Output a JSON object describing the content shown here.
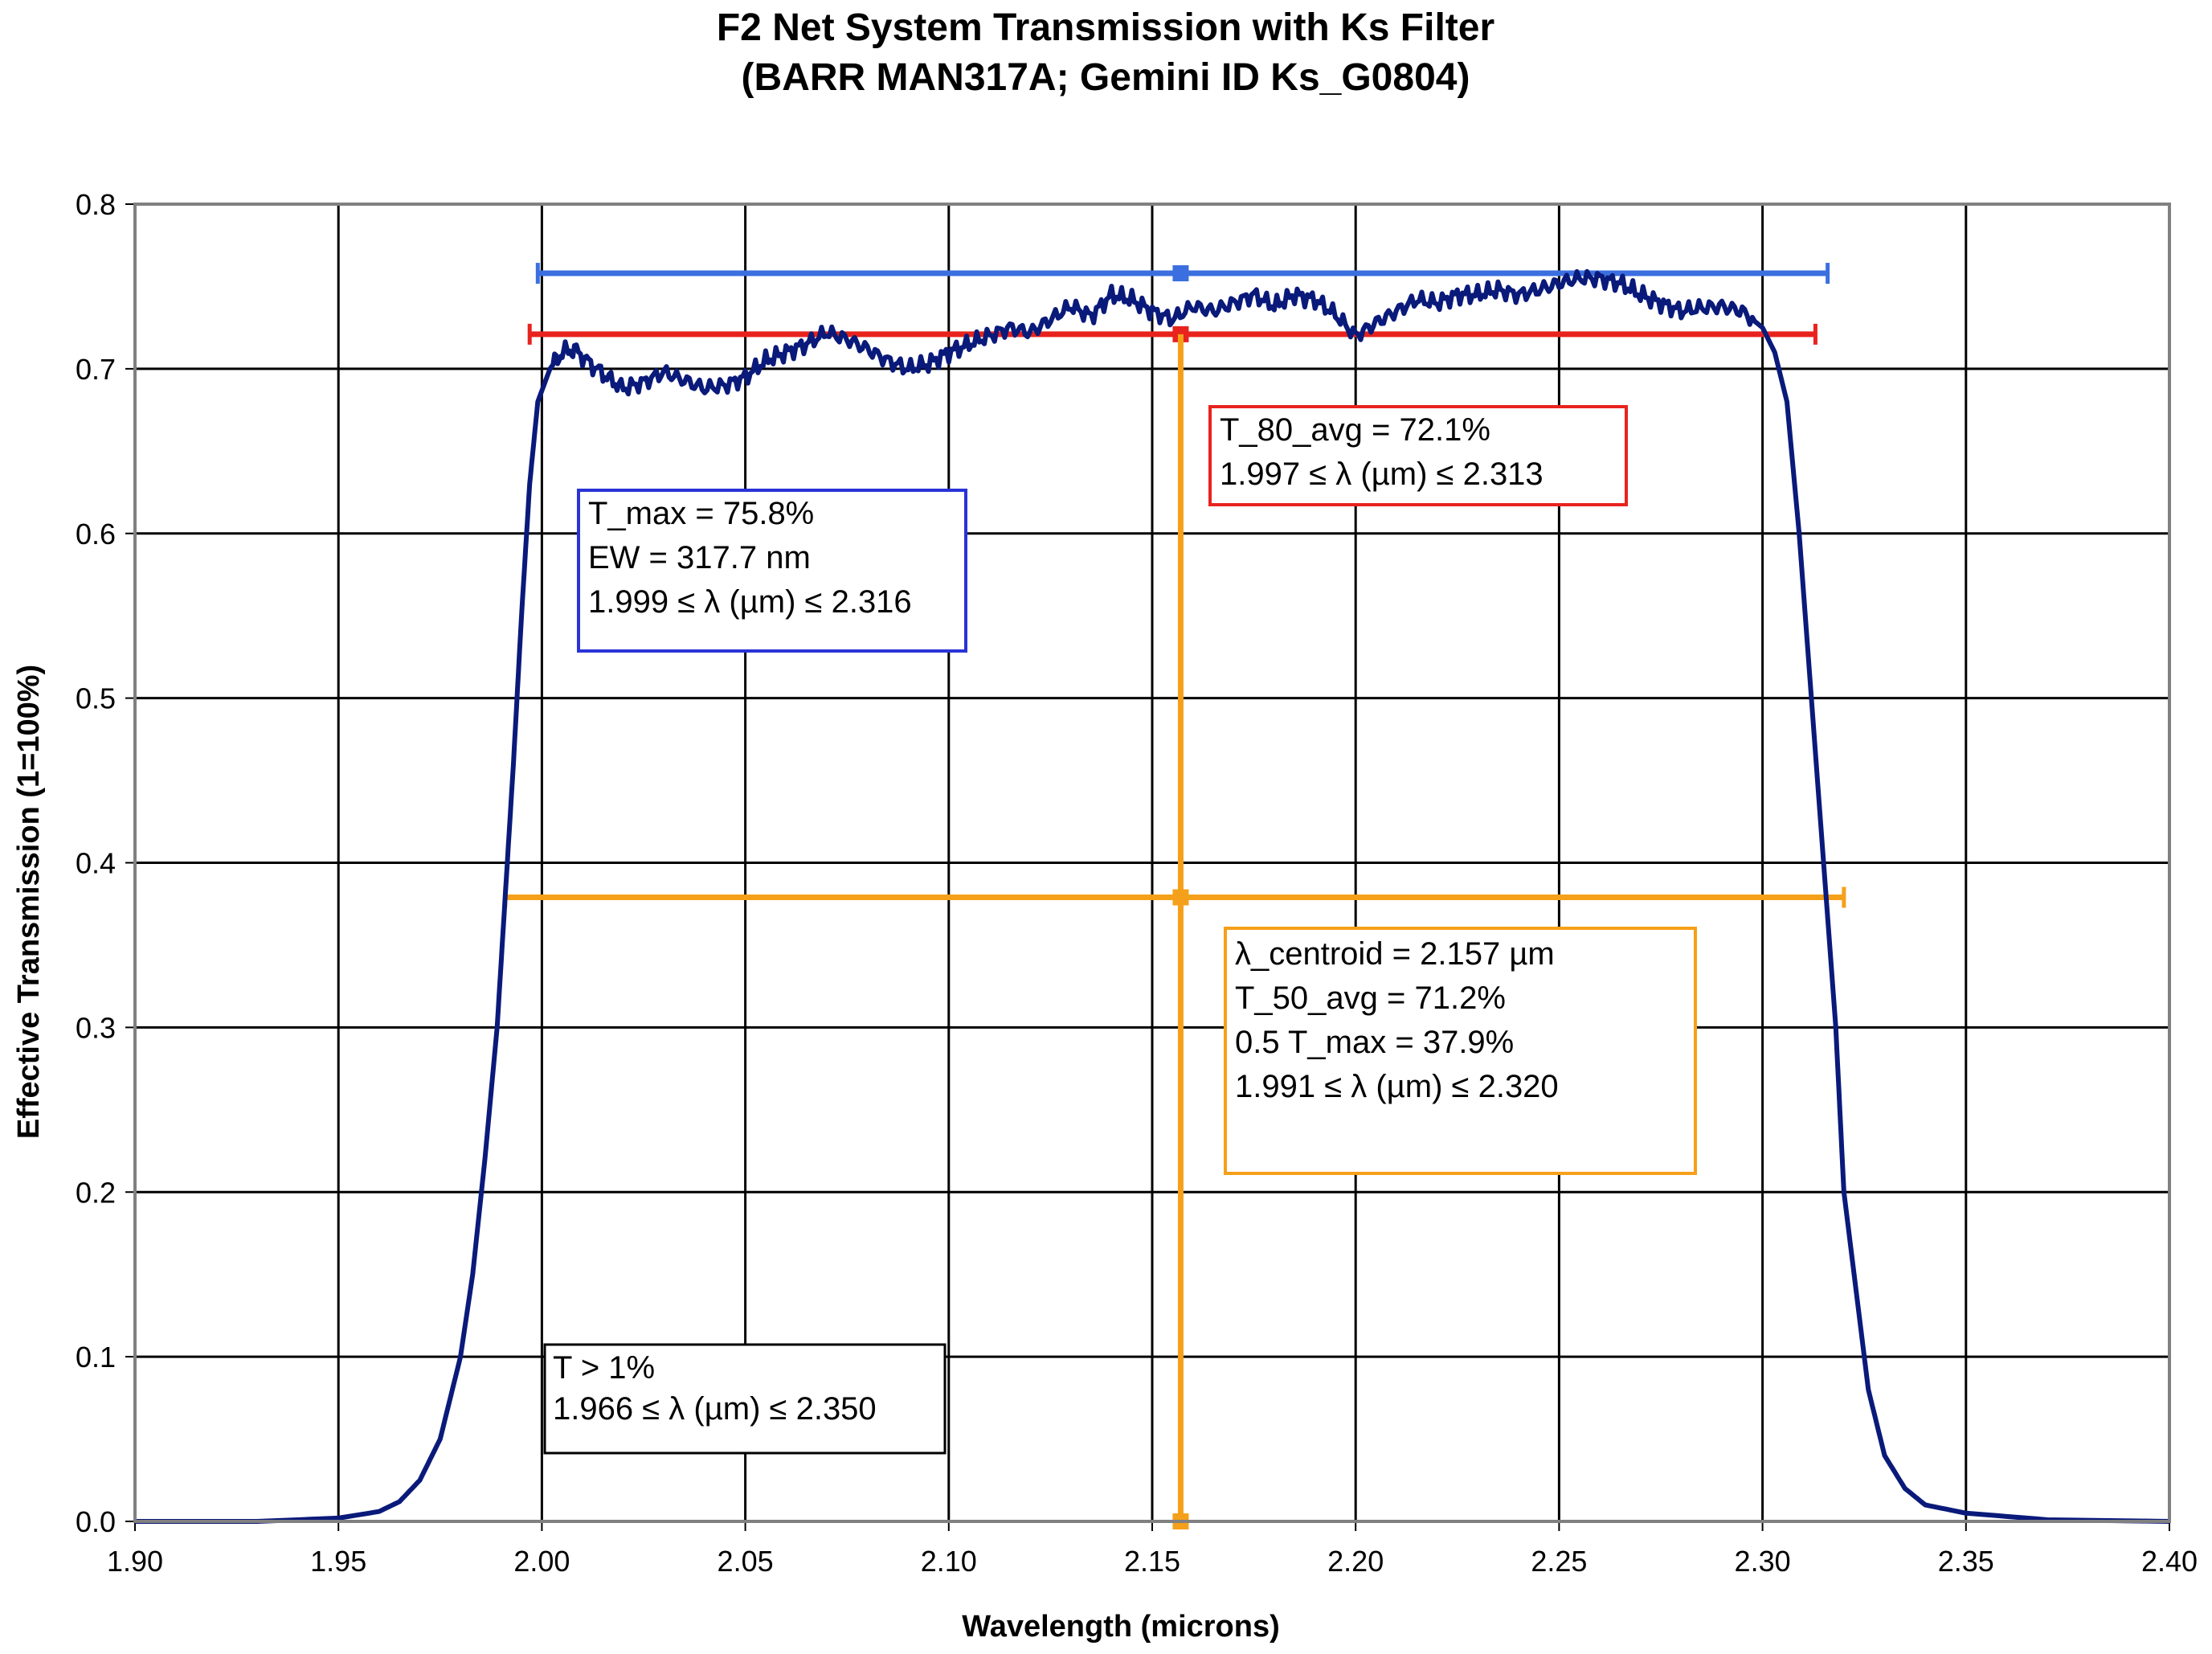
{
  "chart_data": {
    "type": "line",
    "title_line1": "F2 Net System Transmission with Ks Filter",
    "title_line2": "(BARR MAN317A; Gemini ID Ks_G0804)",
    "xlabel": "Wavelength (microns)",
    "ylabel": "Effective Transmission (1=100%)",
    "xlim": [
      1.9,
      2.4
    ],
    "ylim": [
      0,
      0.8
    ],
    "x_ticks": [
      "1.90",
      "1.95",
      "2.00",
      "2.05",
      "2.10",
      "2.15",
      "2.20",
      "2.25",
      "2.30",
      "2.35",
      "2.40"
    ],
    "y_ticks": [
      "0.0",
      "0.1",
      "0.2",
      "0.3",
      "0.4",
      "0.5",
      "0.6",
      "0.7",
      "0.8"
    ],
    "grid": true,
    "series": [
      {
        "color": "#0a1a7a",
        "x": [
          1.9,
          1.93,
          1.95,
          1.96,
          1.965,
          1.97,
          1.975,
          1.98,
          1.983,
          1.986,
          1.989,
          1.991,
          1.993,
          1.995,
          1.997,
          1.999,
          2.002,
          2.005,
          2.008,
          2.012,
          2.016,
          2.02,
          2.025,
          2.03,
          2.035,
          2.04,
          2.045,
          2.05,
          2.055,
          2.06,
          2.065,
          2.07,
          2.075,
          2.08,
          2.085,
          2.09,
          2.095,
          2.1,
          2.105,
          2.11,
          2.115,
          2.12,
          2.125,
          2.13,
          2.135,
          2.14,
          2.145,
          2.15,
          2.155,
          2.16,
          2.165,
          2.17,
          2.175,
          2.18,
          2.185,
          2.19,
          2.195,
          2.2,
          2.205,
          2.21,
          2.215,
          2.22,
          2.225,
          2.23,
          2.235,
          2.24,
          2.245,
          2.25,
          2.255,
          2.26,
          2.265,
          2.27,
          2.275,
          2.28,
          2.285,
          2.29,
          2.295,
          2.3,
          2.303,
          2.306,
          2.309,
          2.312,
          2.315,
          2.318,
          2.32,
          2.323,
          2.326,
          2.33,
          2.335,
          2.34,
          2.35,
          2.37,
          2.4
        ],
        "y": [
          0.0,
          0.0,
          0.002,
          0.006,
          0.012,
          0.025,
          0.05,
          0.1,
          0.15,
          0.22,
          0.3,
          0.38,
          0.46,
          0.55,
          0.63,
          0.68,
          0.7,
          0.71,
          0.712,
          0.703,
          0.695,
          0.688,
          0.692,
          0.698,
          0.693,
          0.688,
          0.69,
          0.695,
          0.705,
          0.71,
          0.715,
          0.722,
          0.718,
          0.712,
          0.705,
          0.7,
          0.703,
          0.71,
          0.715,
          0.72,
          0.725,
          0.722,
          0.73,
          0.738,
          0.732,
          0.745,
          0.742,
          0.735,
          0.73,
          0.738,
          0.735,
          0.74,
          0.745,
          0.738,
          0.745,
          0.742,
          0.733,
          0.72,
          0.728,
          0.735,
          0.742,
          0.74,
          0.745,
          0.745,
          0.748,
          0.745,
          0.748,
          0.752,
          0.755,
          0.755,
          0.752,
          0.745,
          0.74,
          0.735,
          0.737,
          0.738,
          0.735,
          0.725,
          0.71,
          0.68,
          0.6,
          0.5,
          0.4,
          0.3,
          0.2,
          0.14,
          0.08,
          0.04,
          0.02,
          0.01,
          0.005,
          0.001,
          0.0
        ]
      }
    ],
    "bars": [
      {
        "color": "#3b6fe0",
        "y": 0.758,
        "x_start": 1.999,
        "x_end": 2.316,
        "marker_x": 2.157
      },
      {
        "color": "#e8231e",
        "y": 0.721,
        "x_start": 1.997,
        "x_end": 2.313,
        "marker_x": 2.157
      },
      {
        "color": "#f5a01a",
        "y": 0.379,
        "x_start": 1.991,
        "x_end": 2.32,
        "marker_x": 2.157
      }
    ],
    "centroid_line": {
      "color": "#f5a01a",
      "x": 2.157,
      "y_from": 0.0,
      "y_to": 0.721
    },
    "annotations": [
      {
        "color": "#e8231e",
        "lines": [
          "T_80_avg = 72.1%",
          "1.997 ≤ λ (µm) ≤ 2.313"
        ]
      },
      {
        "color": "#2a33d6",
        "lines": [
          "T_max = 75.8%",
          "EW = 317.7 nm",
          "1.999 ≤ λ (µm) ≤ 2.316"
        ]
      },
      {
        "color": "#f5a01a",
        "lines": [
          "λ_centroid = 2.157 µm",
          "T_50_avg = 71.2%",
          "0.5 T_max = 37.9%",
          "1.991 ≤ λ (µm) ≤ 2.320"
        ]
      },
      {
        "color": "#000000",
        "lines": [
          "T > 1%",
          "1.966 ≤ λ (µm) ≤ 2.350"
        ]
      }
    ]
  }
}
